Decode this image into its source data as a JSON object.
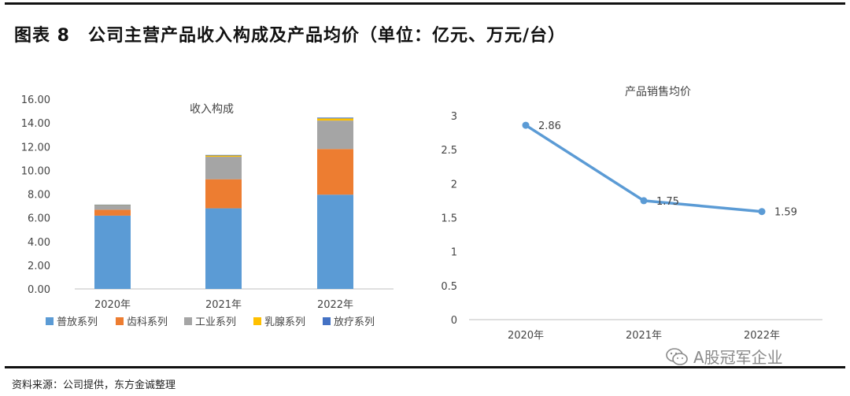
{
  "figure": {
    "title": "图表 8　公司主营产品收入构成及产品均价（单位：亿元、万元/台）",
    "source": "资料来源：公司提供，东方金诚整理",
    "watermark": "A股冠军企业",
    "watermark_icon": "wechat-icon"
  },
  "chart_data": [
    {
      "type": "bar",
      "stacked": true,
      "title": "收入构成",
      "categories": [
        "2020年",
        "2021年",
        "2022年"
      ],
      "ylim": [
        0,
        16
      ],
      "ytick_step": 2,
      "ytick_format": "fixed2",
      "grid": false,
      "legend_position": "bottom",
      "series": [
        {
          "name": "普放系列",
          "color": "#5b9bd5",
          "values": [
            6.18,
            6.8,
            7.95
          ]
        },
        {
          "name": "齿科系列",
          "color": "#ed7d31",
          "values": [
            0.5,
            2.45,
            3.85
          ]
        },
        {
          "name": "工业系列",
          "color": "#a5a5a5",
          "values": [
            0.37,
            1.9,
            2.4
          ]
        },
        {
          "name": "乳腺系列",
          "color": "#ffc000",
          "values": [
            0.04,
            0.1,
            0.18
          ]
        },
        {
          "name": "放疗系列",
          "color": "#4472c4",
          "values": [
            0.02,
            0.05,
            0.07
          ]
        }
      ]
    },
    {
      "type": "line",
      "title": "产品销售均价",
      "categories": [
        "2020年",
        "2021年",
        "2022年"
      ],
      "ylim": [
        0,
        3
      ],
      "ytick_step": 0.5,
      "grid": false,
      "series": [
        {
          "name": "",
          "color": "#5b9bd5",
          "values": [
            2.86,
            1.75,
            1.59
          ],
          "labels": [
            "2.86",
            "1.75",
            "1.59"
          ]
        }
      ]
    }
  ]
}
